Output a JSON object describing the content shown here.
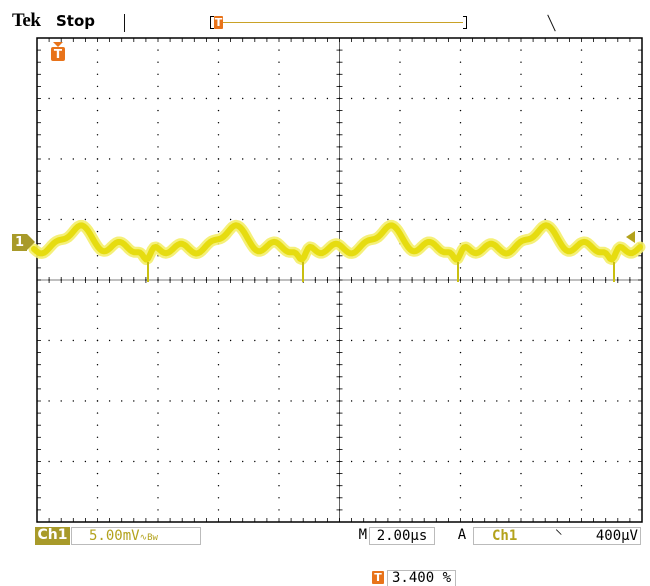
{
  "header": {
    "brand": "Tek",
    "acquisition_state": "Stop"
  },
  "record_view": {
    "trigger_marker_icon": "trigger-t-icon"
  },
  "trigger": {
    "position_icon": "trigger-t-icon",
    "level_marker_icon": "trigger-level-arrow-icon"
  },
  "channel1": {
    "marker_label": "1",
    "color": "#f2ea14",
    "badge_color": "#a89a2a"
  },
  "status_bar": {
    "channel_label": "Ch1",
    "volts_per_div": "5.00mV",
    "bandwidth_limit_symbol": "∿B_W",
    "bw_main": "∿",
    "bw_sub": "Bᴡ",
    "timebase_label": "M",
    "time_per_div": "2.00µs",
    "trigger_mode_label": "A",
    "trigger_source": "Ch1",
    "trigger_slope_symbol": "⸌",
    "trigger_slope_icon": "falling-edge-icon",
    "trigger_level": "400µV"
  },
  "trigger_position": {
    "icon": "trigger-t-icon",
    "value": "3.400 %"
  },
  "graticule": {
    "divisions_x": 10,
    "divisions_y": 8,
    "grid_color": "#000000"
  }
}
